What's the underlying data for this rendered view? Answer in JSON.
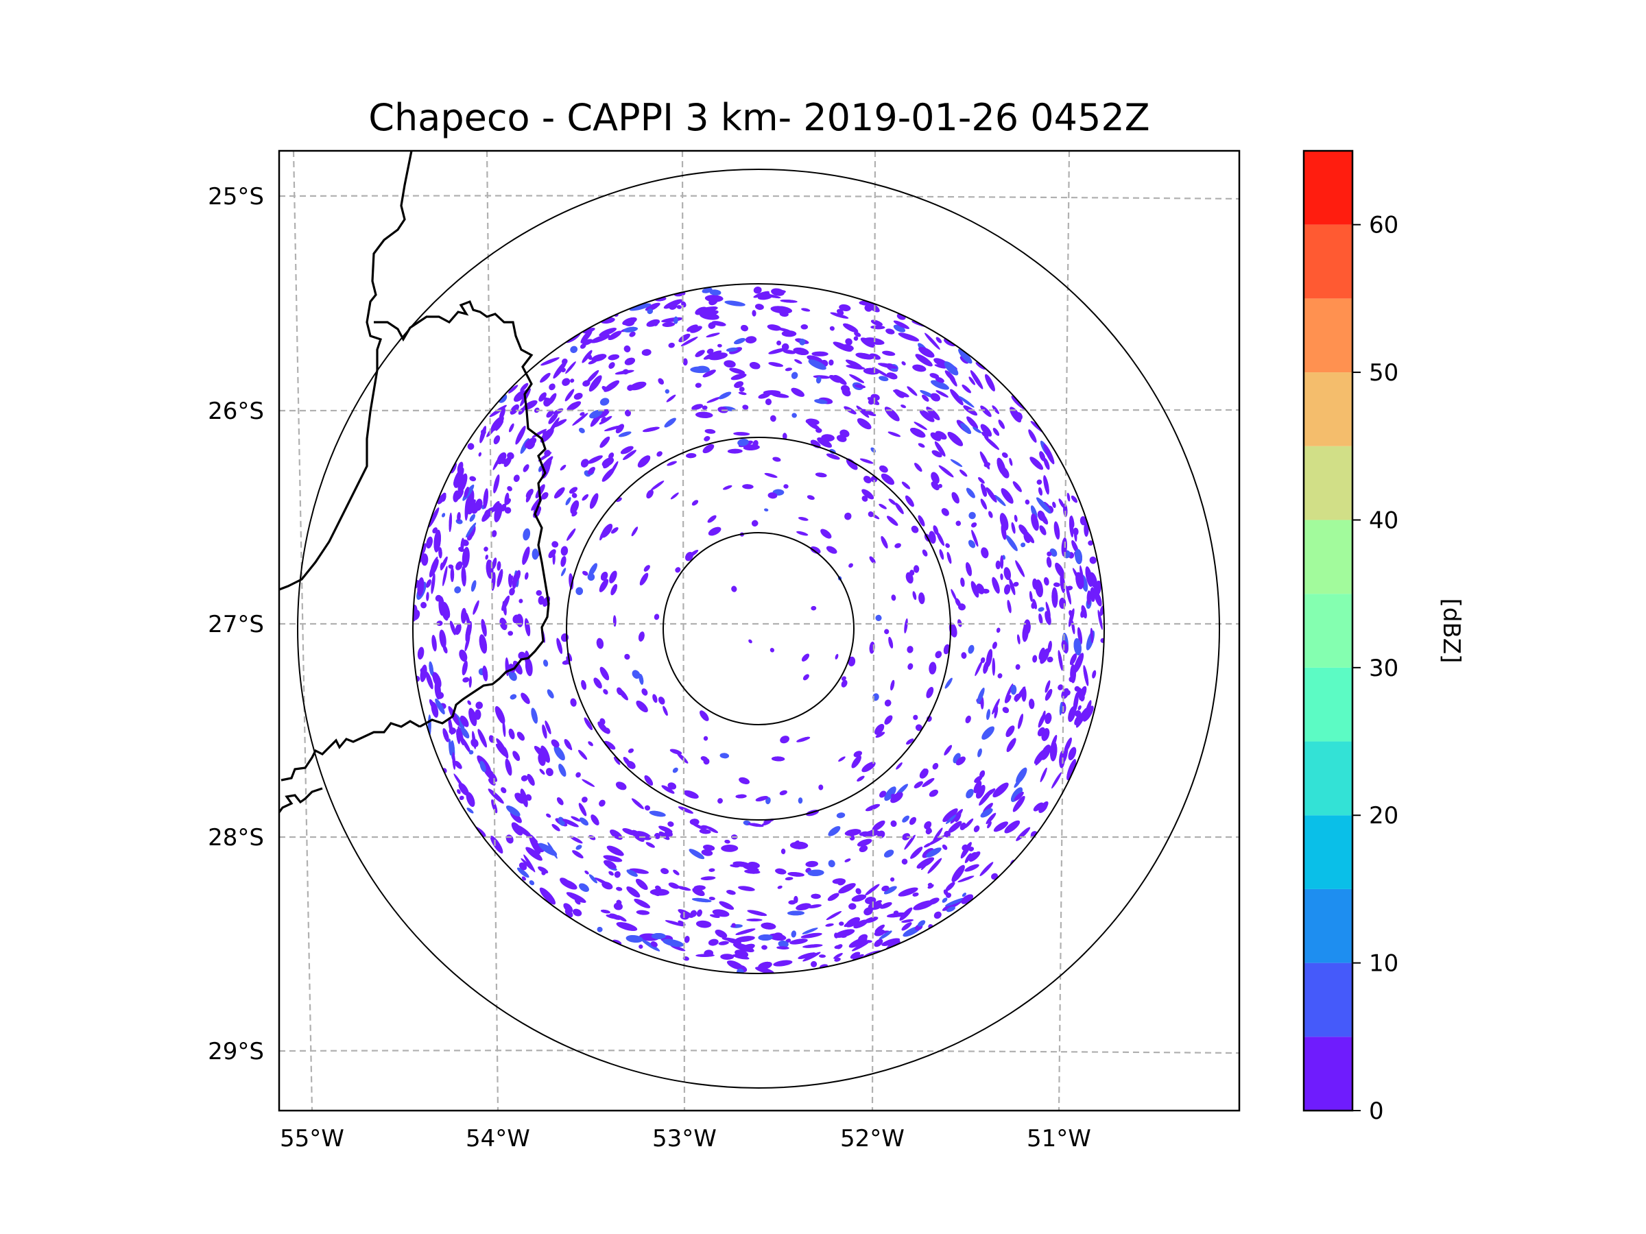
{
  "chart_data": {
    "type": "heatmap",
    "title": "Chapeco - CAPPI 3 km- 2019-01-26 0452Z",
    "radar_site": "Chapeco",
    "product": "CAPPI",
    "altitude": "3 km",
    "datetime": "2019-01-26 0452Z",
    "projection": "map (lat/lon)",
    "xlabel": "",
    "ylabel": "",
    "x_ticks": [
      {
        "value": -55,
        "label": "55°W"
      },
      {
        "value": -54,
        "label": "54°W"
      },
      {
        "value": -53,
        "label": "53°W"
      },
      {
        "value": -52,
        "label": "52°W"
      },
      {
        "value": -51,
        "label": "51°W"
      }
    ],
    "y_ticks": [
      {
        "value": -25,
        "label": "25°S"
      },
      {
        "value": -26,
        "label": "26°S"
      },
      {
        "value": -27,
        "label": "27°S"
      },
      {
        "value": -28,
        "label": "28°S"
      },
      {
        "value": -29,
        "label": "29°S"
      }
    ],
    "xlim": [
      -55.1,
      -50.0
    ],
    "ylim": [
      -29.3,
      -24.8
    ],
    "grid": true,
    "grid_style": "dashed gray",
    "range_rings_count": 4,
    "radar_center": {
      "lon": -52.6,
      "lat": -27.0
    },
    "colorbar": {
      "label": "[dBZ]",
      "min": 0,
      "max": 65,
      "step": 5,
      "tick_values": [
        0,
        10,
        20,
        30,
        40,
        50,
        60
      ],
      "tick_labels": [
        "0",
        "10",
        "20",
        "30",
        "40",
        "50",
        "60"
      ],
      "bins": [
        {
          "from": 0,
          "to": 5,
          "color": "#6f1cfd"
        },
        {
          "from": 5,
          "to": 10,
          "color": "#455afa"
        },
        {
          "from": 10,
          "to": 15,
          "color": "#1e8ef0"
        },
        {
          "from": 15,
          "to": 20,
          "color": "#0abfe8"
        },
        {
          "from": 20,
          "to": 25,
          "color": "#33e2d6"
        },
        {
          "from": 25,
          "to": 30,
          "color": "#5cfbc4"
        },
        {
          "from": 30,
          "to": 35,
          "color": "#84ffb0"
        },
        {
          "from": 35,
          "to": 40,
          "color": "#a2fb9c"
        },
        {
          "from": 40,
          "to": 45,
          "color": "#d1df87"
        },
        {
          "from": 45,
          "to": 50,
          "color": "#f4bd6c"
        },
        {
          "from": 50,
          "to": 55,
          "color": "#ff9150"
        },
        {
          "from": 55,
          "to": 60,
          "color": "#ff5a32"
        },
        {
          "from": 60,
          "to": 65,
          "color": "#ff1d0f"
        }
      ]
    },
    "echo_summary": "Scattered weak echoes (0-10 dBZ) across the radar domain, denser toward outer ranges, especially west (~26.5-27.3°S, 54°W) and southeast (~28.3°S, 52°W)."
  }
}
